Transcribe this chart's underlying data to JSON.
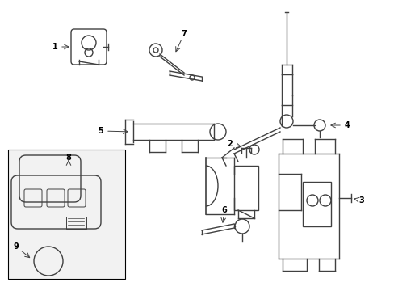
{
  "background_color": "#ffffff",
  "border_color": "#000000",
  "line_color": "#404040",
  "label_color": "#000000",
  "fig_width": 4.89,
  "fig_height": 3.6,
  "dpi": 100
}
